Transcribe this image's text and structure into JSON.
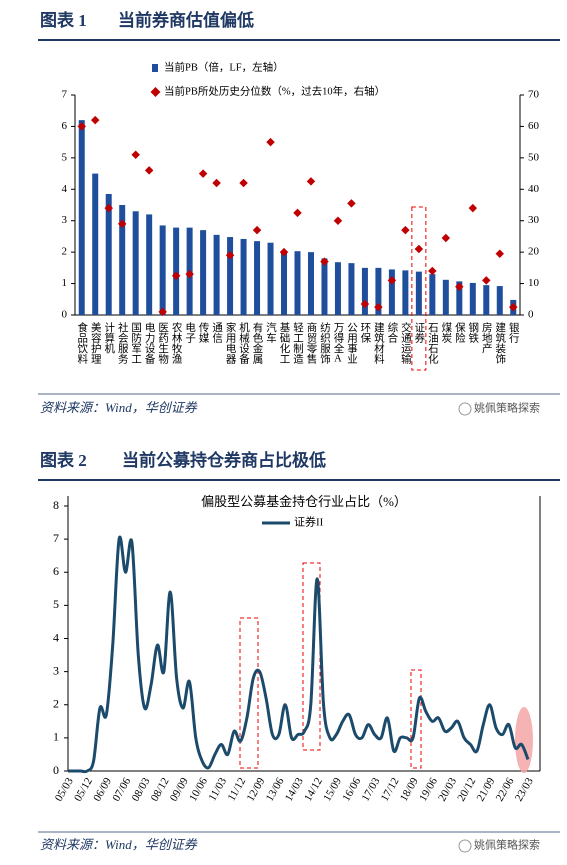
{
  "figures": [
    {
      "label": "图表 1",
      "title": "当前券商估值偏低",
      "source": "资料来源：Wind，华创证券",
      "watermark": "姚佩策略探索"
    },
    {
      "label": "图表 2",
      "title": "当前公募持仓券商占比极低",
      "source": "资料来源：Wind，华创证券",
      "watermark": "姚佩策略探索"
    }
  ],
  "chart_data": [
    {
      "type": "bar",
      "categories": [
        "食品饮料",
        "美容护理",
        "计算机",
        "社会服务",
        "国防军工",
        "电力设备",
        "医药生物",
        "农林牧渔",
        "电子",
        "传媒",
        "通信",
        "家用电器",
        "机械设备",
        "有色金属",
        "汽车",
        "基础化工",
        "轻工制造",
        "商贸零售",
        "纺织服饰",
        "万得全A",
        "公用事业",
        "环保",
        "建筑材料",
        "综合",
        "交通运输",
        "证券",
        "石油石化",
        "煤炭",
        "保险",
        "钢铁",
        "房地产",
        "建筑装饰",
        "银行"
      ],
      "series": [
        {
          "name": "当前PB（倍，LF，左轴）",
          "color": "#1f4e9c",
          "values": [
            6.2,
            4.5,
            3.85,
            3.5,
            3.3,
            3.2,
            2.85,
            2.78,
            2.78,
            2.7,
            2.55,
            2.48,
            2.42,
            2.35,
            2.3,
            2.05,
            2.03,
            2.0,
            1.8,
            1.68,
            1.65,
            1.5,
            1.5,
            1.45,
            1.42,
            1.38,
            1.3,
            1.12,
            1.07,
            1.02,
            0.95,
            0.92,
            0.48
          ]
        },
        {
          "name": "当前PB所处历史分位数（%，过去10年，右轴）",
          "color": "#c00000",
          "axis": "y2",
          "marker": "diamond",
          "values": [
            60,
            62,
            34,
            29,
            51,
            46,
            1,
            12.5,
            13,
            45,
            42,
            19,
            42,
            27,
            55,
            20,
            32.5,
            42.5,
            17,
            30,
            35.5,
            3.5,
            2.5,
            11,
            27,
            21,
            14,
            24.5,
            9,
            34,
            11,
            19.5,
            2.5
          ]
        }
      ],
      "ylim": [
        0,
        7
      ],
      "yticks": [
        0,
        1,
        2,
        3,
        4,
        5,
        6,
        7
      ],
      "y2lim": [
        0,
        70
      ],
      "y2ticks": [
        0,
        10,
        20,
        30,
        40,
        50,
        60,
        70
      ]
    },
    {
      "type": "line",
      "title": "偏股型公募基金持仓行业占比（%）",
      "categories": [
        "05/03",
        null,
        null,
        "05/12",
        null,
        null,
        "06/09",
        null,
        null,
        "07/06",
        null,
        null,
        "08/03",
        null,
        null,
        "08/12",
        null,
        null,
        "09/09",
        null,
        null,
        "10/06",
        null,
        null,
        "11/03",
        null,
        null,
        "11/12",
        null,
        null,
        "12/09",
        null,
        null,
        "13/06",
        null,
        null,
        "14/03",
        null,
        null,
        "14/12",
        null,
        null,
        "15/09",
        null,
        null,
        "16/06",
        null,
        null,
        "17/03",
        null,
        null,
        "17/12",
        null,
        null,
        "18/09",
        null,
        null,
        "19/06",
        null,
        null,
        "20/03",
        null,
        null,
        "20/12",
        null,
        null,
        "21/09",
        null,
        null,
        "22/06",
        null,
        null,
        "23/03"
      ],
      "series": [
        {
          "name": "证券II",
          "color": "#1b4a6b",
          "values": [
            0,
            0,
            0,
            0,
            0.3,
            1.9,
            1.7,
            3.8,
            7.0,
            6.0,
            6.9,
            3.5,
            1.9,
            2.6,
            3.8,
            3.0,
            5.4,
            2.8,
            1.9,
            2.7,
            1.0,
            0.3,
            0.1,
            0.5,
            0.8,
            0.5,
            1.2,
            0.9,
            1.6,
            2.8,
            3.0,
            2.2,
            1.1,
            1.1,
            2.0,
            1.0,
            1.1,
            1.2,
            2.0,
            5.8,
            2.0,
            1.0,
            1.1,
            1.5,
            1.7,
            1.1,
            1.0,
            1.4,
            1.1,
            1.0,
            1.6,
            0.6,
            1.0,
            1.0,
            1.0,
            2.2,
            1.8,
            1.5,
            1.6,
            1.2,
            1.3,
            1.5,
            1.0,
            0.8,
            0.6,
            1.4,
            2.0,
            1.3,
            1.1,
            1.4,
            0.7,
            0.8,
            0.35
          ]
        }
      ],
      "ylim": [
        0,
        8
      ],
      "yticks": [
        0,
        1,
        2,
        3,
        4,
        5,
        6,
        7,
        8
      ]
    }
  ]
}
